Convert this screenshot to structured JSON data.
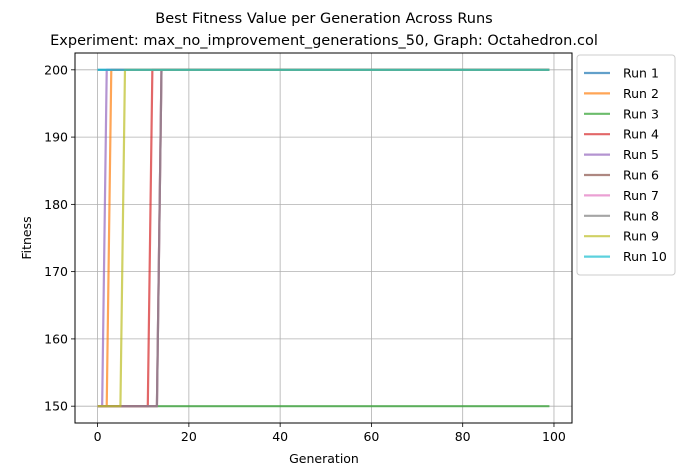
{
  "chart_data": {
    "type": "line",
    "title": "Best Fitness Value per Generation Across Runs",
    "subtitle": "Experiment: max_no_improvement_generations_50, Graph: Octahedron.col",
    "xlabel": "Generation",
    "ylabel": "Fitness",
    "xlim": [
      -4.95,
      103.95
    ],
    "ylim": [
      147.5,
      202.5
    ],
    "xticks": [
      0,
      20,
      40,
      60,
      80,
      100
    ],
    "yticks": [
      150,
      160,
      170,
      180,
      190,
      200
    ],
    "grid": true,
    "legend_position": "outside-right",
    "series": [
      {
        "name": "Run 1",
        "color": "#1f77b4",
        "start": 200,
        "jump_at": 0,
        "end": 200
      },
      {
        "name": "Run 2",
        "color": "#ff7f0e",
        "start": 150,
        "jump_at": 3,
        "end": 200
      },
      {
        "name": "Run 3",
        "color": "#2ca02c",
        "start": 150,
        "jump_at": null,
        "end": 150
      },
      {
        "name": "Run 4",
        "color": "#d62728",
        "start": 150,
        "jump_at": 12,
        "end": 200
      },
      {
        "name": "Run 5",
        "color": "#9467bd",
        "start": 150,
        "jump_at": 2,
        "end": 200
      },
      {
        "name": "Run 6",
        "color": "#8c564b",
        "start": 150,
        "jump_at": 14,
        "end": 200
      },
      {
        "name": "Run 7",
        "color": "#e377c2",
        "start": 150,
        "jump_at": 14,
        "end": 200
      },
      {
        "name": "Run 8",
        "color": "#7f7f7f",
        "start": 150,
        "jump_at": 14,
        "end": 200
      },
      {
        "name": "Run 9",
        "color": "#bcbd22",
        "start": 150,
        "jump_at": 6,
        "end": 200
      },
      {
        "name": "Run 10",
        "color": "#17becf",
        "start": 200,
        "jump_at": 0,
        "end": 200
      }
    ],
    "x_start": 0,
    "x_end": 99
  }
}
